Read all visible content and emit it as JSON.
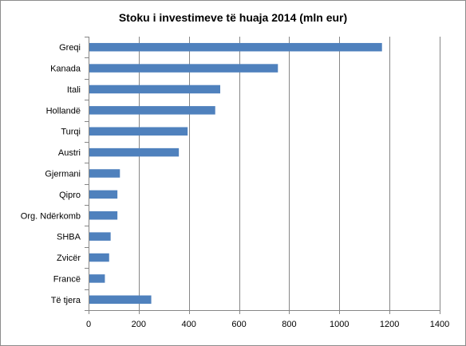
{
  "chart_data": {
    "type": "bar",
    "orientation": "horizontal",
    "title": "Stoku i investimeve të huaja 2014 (mln eur)",
    "xlabel": "",
    "ylabel": "",
    "categories": [
      "Greqi",
      "Kanada",
      "Itali",
      "Hollandë",
      "Turqi",
      "Austri",
      "Gjermani",
      "Qipro",
      "Org. Ndërkomb",
      "SHBA",
      "Zvicër",
      "Francë",
      "Të tjera"
    ],
    "values": [
      1170,
      755,
      525,
      505,
      395,
      360,
      125,
      115,
      115,
      88,
      82,
      65,
      250
    ],
    "xlim": [
      0,
      1400
    ],
    "xticks": [
      0,
      200,
      400,
      600,
      800,
      1000,
      1200,
      1400
    ],
    "grid": "vertical",
    "legend": "none",
    "bar_color": "#4F81BD"
  }
}
